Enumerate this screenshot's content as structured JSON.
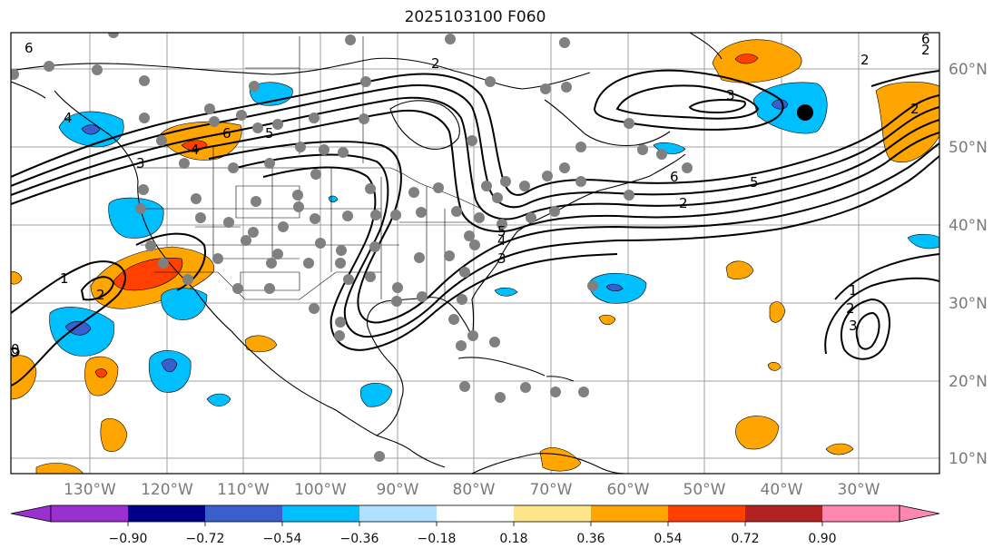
{
  "title": "2025103100 F060",
  "lat_labels": [
    "60°N",
    "50°N",
    "40°N",
    "30°N",
    "20°N",
    "10°N"
  ],
  "lon_labels": [
    "130°W",
    "120°W",
    "110°W",
    "100°W",
    "90°W",
    "80°W",
    "70°W",
    "60°W",
    "50°W",
    "40°W",
    "30°W"
  ],
  "contour_labels": [
    "6",
    "2",
    "3",
    "4",
    "6",
    "5",
    "4",
    "3",
    "2",
    "1",
    "2",
    "3",
    "2",
    "6",
    "5",
    "2",
    "2",
    "1",
    "2",
    "3",
    "0",
    "6",
    "4",
    "5"
  ],
  "colorbar": {
    "ticks": [
      "−0.90",
      "−0.72",
      "−0.54",
      "−0.36",
      "−0.18",
      "0.18",
      "0.36",
      "0.54",
      "0.72",
      "0.90"
    ],
    "colors": [
      "#9b30d0",
      "#00008b",
      "#3a5fcd",
      "#00bfff",
      "#b0e0ff",
      "#ffffff",
      "#fde68a",
      "#ffa500",
      "#ff4000",
      "#b22222",
      "#ff88b0"
    ]
  },
  "shading_colors": {
    "neg_light": "#00bfff",
    "neg_mid": "#3a5fcd",
    "pos_light": "#ffa500",
    "pos_mid": "#ff4000",
    "station": "#808080",
    "marker": "#000000"
  }
}
